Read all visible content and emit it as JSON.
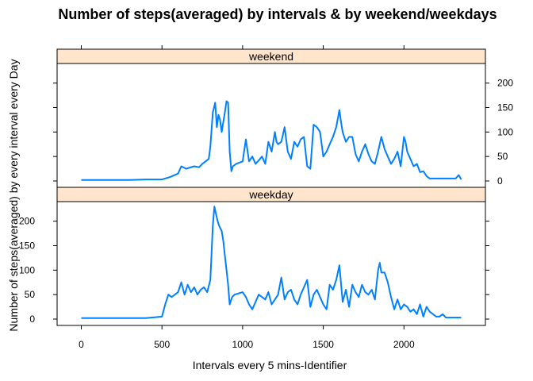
{
  "chart_data": {
    "type": "line",
    "title": "Number of steps(averaged) by intervals & by weekend/weekdays",
    "xlabel": "Intervals every 5 mins-Identifier",
    "ylabel": "Number of steps(averaged) by every interval every Day",
    "xlim": [
      -150,
      2505
    ],
    "ylim": [
      -13,
      240
    ],
    "xticks": [
      0,
      500,
      1000,
      1500,
      2000
    ],
    "yticks": [
      0,
      50,
      100,
      150,
      200
    ],
    "line_color": "#0080ff",
    "strip_color": "#ffe5cc",
    "panels": [
      {
        "name": "weekend",
        "x": [
          0,
          100,
          200,
          300,
          400,
          500,
          550,
          600,
          620,
          650,
          700,
          730,
          750,
          790,
          800,
          815,
          830,
          840,
          850,
          860,
          870,
          880,
          890,
          900,
          910,
          920,
          930,
          940,
          960,
          1000,
          1020,
          1040,
          1060,
          1080,
          1100,
          1120,
          1140,
          1160,
          1180,
          1200,
          1210,
          1220,
          1240,
          1260,
          1280,
          1300,
          1320,
          1340,
          1360,
          1380,
          1400,
          1420,
          1440,
          1460,
          1480,
          1500,
          1520,
          1540,
          1560,
          1580,
          1600,
          1610,
          1620,
          1640,
          1660,
          1680,
          1700,
          1720,
          1740,
          1760,
          1780,
          1800,
          1820,
          1840,
          1860,
          1880,
          1900,
          1920,
          1940,
          1960,
          1980,
          2000,
          2010,
          2020,
          2040,
          2060,
          2080,
          2100,
          2120,
          2140,
          2160,
          2180,
          2200,
          2220,
          2240,
          2260,
          2280,
          2300,
          2320,
          2340,
          2355
        ],
        "y": [
          2,
          2,
          2,
          2,
          3,
          3,
          8,
          15,
          30,
          25,
          30,
          28,
          35,
          45,
          70,
          140,
          160,
          110,
          135,
          125,
          100,
          120,
          140,
          163,
          160,
          60,
          20,
          30,
          35,
          40,
          85,
          40,
          50,
          35,
          42,
          50,
          35,
          80,
          60,
          100,
          80,
          75,
          80,
          110,
          60,
          45,
          80,
          70,
          85,
          90,
          30,
          25,
          115,
          110,
          100,
          50,
          60,
          75,
          90,
          110,
          145,
          120,
          100,
          80,
          90,
          90,
          55,
          40,
          60,
          75,
          55,
          40,
          35,
          60,
          90,
          65,
          50,
          35,
          45,
          60,
          30,
          90,
          80,
          60,
          45,
          30,
          35,
          18,
          20,
          10,
          5,
          5,
          5,
          5,
          5,
          5,
          5,
          5,
          5,
          12,
          3
        ]
      },
      {
        "name": "weekday",
        "x": [
          0,
          100,
          200,
          300,
          400,
          500,
          520,
          540,
          560,
          580,
          600,
          620,
          640,
          660,
          680,
          700,
          720,
          740,
          760,
          780,
          800,
          815,
          825,
          835,
          845,
          855,
          870,
          880,
          890,
          900,
          910,
          920,
          935,
          950,
          1000,
          1020,
          1040,
          1060,
          1080,
          1100,
          1120,
          1140,
          1160,
          1180,
          1200,
          1220,
          1240,
          1260,
          1280,
          1300,
          1320,
          1340,
          1360,
          1380,
          1400,
          1420,
          1440,
          1460,
          1480,
          1500,
          1520,
          1540,
          1560,
          1580,
          1600,
          1620,
          1640,
          1660,
          1680,
          1700,
          1720,
          1740,
          1760,
          1780,
          1800,
          1820,
          1840,
          1850,
          1860,
          1880,
          1900,
          1920,
          1940,
          1960,
          1980,
          2000,
          2020,
          2040,
          2060,
          2080,
          2100,
          2120,
          2140,
          2160,
          2180,
          2200,
          2220,
          2240,
          2260,
          2280,
          2300,
          2320,
          2340,
          2355
        ],
        "y": [
          2,
          2,
          2,
          2,
          2,
          5,
          30,
          50,
          45,
          50,
          55,
          75,
          50,
          70,
          55,
          65,
          50,
          60,
          65,
          55,
          80,
          190,
          230,
          215,
          200,
          190,
          180,
          160,
          130,
          100,
          70,
          30,
          45,
          50,
          55,
          45,
          30,
          20,
          35,
          50,
          45,
          40,
          55,
          30,
          40,
          50,
          85,
          40,
          55,
          60,
          40,
          30,
          50,
          65,
          80,
          25,
          50,
          60,
          45,
          30,
          20,
          70,
          60,
          80,
          110,
          35,
          60,
          25,
          70,
          55,
          45,
          70,
          55,
          50,
          60,
          40,
          100,
          115,
          95,
          95,
          75,
          45,
          20,
          40,
          20,
          30,
          25,
          15,
          20,
          10,
          30,
          5,
          25,
          15,
          10,
          5,
          5,
          10,
          3,
          3,
          3,
          3,
          3,
          3
        ]
      }
    ]
  }
}
